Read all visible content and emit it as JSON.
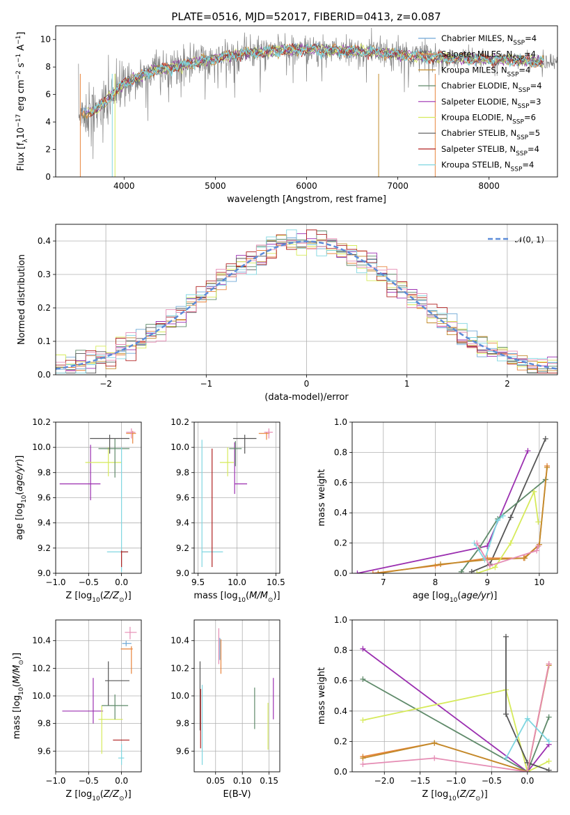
{
  "title": "PLATE=0516, MJD=52017, FIBERID=0413, z=0.087",
  "colors": {
    "Chabrier MILES": "#6fa8d6",
    "Salpeter MILES": "#e8843c",
    "Kroupa MILES": "#c28a2a",
    "Chabrier ELODIE": "#5f8a6a",
    "Salpeter ELODIE": "#9b2fb0",
    "Kroupa ELODIE": "#d6ea5a",
    "Chabrier STELIB": "#555555",
    "Salpeter STELIB": "#b02020",
    "Kroupa STELIB": "#7fd6e0",
    "Pink": "#e58cb4",
    "Data": "#808080",
    "Normal": "#5b8bd8"
  },
  "chart_data": [
    {
      "id": "spectrum",
      "type": "line",
      "title": "PLATE=0516, MJD=52017, FIBERID=0413, z=0.087",
      "xlabel": "wavelength [Angstrom, rest frame]",
      "ylabel": "Flux [f_λ10^-17 erg cm^-2 s^-1 A^-1]",
      "xlim": [
        3250,
        8750
      ],
      "ylim": [
        0,
        11
      ],
      "xticks": [
        4000,
        5000,
        6000,
        7000,
        8000
      ],
      "yticks": [
        0,
        2,
        4,
        6,
        8,
        10
      ],
      "legend_position": "top-right",
      "legend": [
        {
          "label": "Chabrier MILES, N_SSP=4"
        },
        {
          "label": "Salpeter MILES, N_SSP=4"
        },
        {
          "label": "Kroupa MILES, N_SSP=4"
        },
        {
          "label": "Chabrier ELODIE, N_SSP=4"
        },
        {
          "label": "Salpeter ELODIE, N_SSP=3"
        },
        {
          "label": "Kroupa ELODIE, N_SSP=6"
        },
        {
          "label": "Chabrier STELIB, N_SSP=5"
        },
        {
          "label": "Salpeter STELIB, N_SSP=4"
        },
        {
          "label": "Kroupa STELIB, N_SSP=4"
        }
      ],
      "model_trend": {
        "x": [
          3500,
          3700,
          4000,
          4300,
          4700,
          5000,
          5300,
          5700,
          6000,
          6300,
          6700,
          7000,
          7400,
          7800,
          8300,
          8700
        ],
        "y": [
          4.5,
          4.9,
          6.8,
          7.7,
          8.2,
          8.6,
          9.0,
          9.2,
          9.3,
          9.2,
          9.1,
          8.9,
          8.7,
          8.6,
          8.5,
          8.3
        ]
      },
      "data_noise": 1.0,
      "data_start": 3500
    },
    {
      "id": "residuals",
      "type": "histogram",
      "xlabel": "(data-model)/error",
      "ylabel": "Normed distribution",
      "xlim": [
        -2.5,
        2.5
      ],
      "ylim": [
        0,
        0.45
      ],
      "xticks": [
        -2,
        -1,
        0,
        1,
        2
      ],
      "yticks": [
        0.0,
        0.1,
        0.2,
        0.3,
        0.4
      ],
      "bin_width": 0.1,
      "curve_label": "N(0,1)",
      "legend_position": "top-right"
    },
    {
      "id": "age_vs_Z",
      "type": "errorbar",
      "xlabel": "Z [log10(Z/Z⊙)]",
      "ylabel": "age [log10(age/yr)]",
      "xlim": [
        -1.0,
        0.3
      ],
      "ylim": [
        9.0,
        10.2
      ],
      "xticks": [
        -1.0,
        -0.5,
        0.0
      ],
      "yticks": [
        9.0,
        9.2,
        9.4,
        9.6,
        9.8,
        10.0,
        10.2
      ],
      "points": [
        {
          "series": "Salpeter ELODIE",
          "x": -0.47,
          "xerr": [
            0.47,
            0.15
          ],
          "y": 9.71,
          "yerr": [
            0.13,
            0.31
          ]
        },
        {
          "series": "Kroupa ELODIE",
          "x": -0.2,
          "xerr": [
            0.35,
            0.2
          ],
          "y": 9.88,
          "yerr": [
            0.11,
            0.12
          ]
        },
        {
          "series": "Chabrier ELODIE",
          "x": -0.1,
          "xerr": [
            0.25,
            0.22
          ],
          "y": 9.99,
          "yerr": [
            0.23,
            0.08
          ]
        },
        {
          "series": "Chabrier STELIB",
          "x": -0.18,
          "xerr": [
            0.3,
            0.3
          ],
          "y": 10.07,
          "yerr": [
            0.12,
            0.03
          ]
        },
        {
          "series": "Salpeter MILES",
          "x": 0.17,
          "xerr": [
            0.1,
            0.05
          ],
          "y": 10.11,
          "yerr": [
            0.08,
            0.02
          ]
        },
        {
          "series": "Pink",
          "x": 0.15,
          "xerr": [
            0.08,
            0.06
          ],
          "y": 10.12,
          "yerr": [
            0.05,
            0.03
          ]
        },
        {
          "series": "Kroupa STELIB",
          "x": 0.0,
          "xerr": [
            0.22,
            0.1
          ],
          "y": 9.17,
          "yerr": [
            0.16,
            0.83
          ]
        },
        {
          "series": "Salpeter STELIB",
          "x": 0.0,
          "xerr": [
            0.01,
            0.1
          ],
          "y": 9.17,
          "yerr": [
            0.12,
            0.01
          ]
        }
      ]
    },
    {
      "id": "age_vs_mass",
      "type": "errorbar",
      "xlabel": "mass [log10(M/M⊙)]",
      "xlim": [
        9.45,
        10.55
      ],
      "ylim": [
        9.0,
        10.2
      ],
      "xticks": [
        9.5,
        10.0,
        10.5
      ],
      "yticks": [
        9.0,
        9.2,
        9.4,
        9.6,
        9.8,
        10.0,
        10.2
      ],
      "points": [
        {
          "series": "Salpeter ELODIE",
          "x": 9.97,
          "xerr": [
            0.0,
            0.16
          ],
          "y": 9.71,
          "yerr": [
            0.08,
            0.33
          ]
        },
        {
          "series": "Kroupa ELODIE",
          "x": 9.88,
          "xerr": [
            0.1,
            0.08
          ],
          "y": 9.88,
          "yerr": [
            0.11,
            0.12
          ]
        },
        {
          "series": "Chabrier ELODIE",
          "x": 9.98,
          "xerr": [
            0.08,
            0.08
          ],
          "y": 9.99,
          "yerr": [
            0.14,
            0.06
          ]
        },
        {
          "series": "Chabrier STELIB",
          "x": 10.1,
          "xerr": [
            0.15,
            0.15
          ],
          "y": 10.07,
          "yerr": [
            0.12,
            0.03
          ]
        },
        {
          "series": "Salpeter MILES",
          "x": 10.38,
          "xerr": [
            0.1,
            0.04
          ],
          "y": 10.11,
          "yerr": [
            0.05,
            0.01
          ]
        },
        {
          "series": "Pink",
          "x": 10.41,
          "xerr": [
            0.06,
            0.05
          ],
          "y": 10.12,
          "yerr": [
            0.05,
            0.03
          ]
        },
        {
          "series": "Kroupa STELIB",
          "x": 9.55,
          "xerr": [
            0.0,
            0.27
          ],
          "y": 9.17,
          "yerr": [
            0.12,
            0.89
          ]
        },
        {
          "series": "Salpeter STELIB",
          "x": 9.68,
          "xerr": [
            0.0,
            0.0
          ],
          "y": 9.17,
          "yerr": [
            0.12,
            0.82
          ]
        }
      ]
    },
    {
      "id": "weight_vs_age",
      "type": "line",
      "xlabel": "age [log10(age/yr)]",
      "ylabel": "mass weight",
      "xlim": [
        6.4,
        10.35
      ],
      "ylim": [
        0,
        1.0
      ],
      "xticks": [
        7,
        8,
        9,
        10
      ],
      "yticks": [
        0.0,
        0.2,
        0.4,
        0.6,
        0.8,
        1.0
      ],
      "series": [
        {
          "name": "Salpeter ELODIE",
          "x": [
            6.5,
            9.0,
            9.78
          ],
          "y": [
            0.0,
            0.18,
            0.81
          ]
        },
        {
          "name": "Chabrier STELIB",
          "x": [
            8.7,
            9.05,
            9.45,
            10.12
          ],
          "y": [
            0.01,
            0.06,
            0.37,
            0.89
          ]
        },
        {
          "name": "Chabrier ELODIE",
          "x": [
            8.5,
            8.85,
            9.2,
            10.12
          ],
          "y": [
            0.01,
            0.17,
            0.36,
            0.62
          ]
        },
        {
          "name": "Salpeter MILES",
          "x": [
            6.8,
            8.0,
            9.0,
            9.7,
            10.0,
            10.15
          ],
          "y": [
            0.0,
            0.05,
            0.1,
            0.1,
            0.19,
            0.71
          ]
        },
        {
          "name": "Kroupa MILES",
          "x": [
            6.9,
            8.1,
            9.0,
            9.72,
            10.0,
            10.15
          ],
          "y": [
            0.0,
            0.06,
            0.09,
            0.1,
            0.19,
            0.7
          ]
        },
        {
          "name": "Kroupa ELODIE",
          "x": [
            8.8,
            9.15,
            9.45,
            9.9,
            9.98
          ],
          "y": [
            0.0,
            0.04,
            0.2,
            0.54,
            0.34
          ]
        },
        {
          "name": "Kroupa STELIB",
          "x": [
            8.75,
            8.95,
            9.2,
            9.3
          ],
          "y": [
            0.2,
            0.09,
            0.35,
            0.38
          ]
        },
        {
          "name": "Pink",
          "x": [
            8.8,
            9.05,
            9.95,
            9.98
          ],
          "y": [
            0.2,
            0.05,
            0.15,
            0.18
          ]
        }
      ]
    },
    {
      "id": "mass_vs_Z",
      "type": "errorbar",
      "xlabel": "Z [log10(Z/Z⊙)]",
      "ylabel": "mass [log10(M/M⊙)]",
      "xlim": [
        -1.0,
        0.3
      ],
      "ylim": [
        9.45,
        10.55
      ],
      "xticks": [
        -1.0,
        -0.5,
        0.0
      ],
      "yticks": [
        9.6,
        9.8,
        10.0,
        10.2,
        10.4
      ],
      "points": [
        {
          "series": "Salpeter ELODIE",
          "x": -0.43,
          "xerr": [
            0.47,
            0.15
          ],
          "y": 9.89,
          "yerr": [
            0.09,
            0.24
          ]
        },
        {
          "series": "Kroupa ELODIE",
          "x": -0.3,
          "xerr": [
            0.05,
            0.32
          ],
          "y": 9.83,
          "yerr": [
            0.25,
            0.1
          ]
        },
        {
          "series": "Chabrier ELODIE",
          "x": -0.1,
          "xerr": [
            0.2,
            0.2
          ],
          "y": 9.93,
          "yerr": [
            0.1,
            0.08
          ]
        },
        {
          "series": "Chabrier STELIB",
          "x": -0.2,
          "xerr": [
            0.05,
            0.32
          ],
          "y": 10.11,
          "yerr": [
            0.18,
            0.14
          ]
        },
        {
          "series": "Salpeter STELIB",
          "x": -0.03,
          "xerr": [
            0.1,
            0.15
          ],
          "y": 9.68,
          "yerr": [
            0.0,
            0.0
          ]
        },
        {
          "series": "Kroupa STELIB",
          "x": 0.0,
          "xerr": [
            0.05,
            0.04
          ],
          "y": 9.55,
          "yerr": [
            0.05,
            0.1
          ]
        },
        {
          "series": "Salpeter MILES",
          "x": 0.15,
          "xerr": [
            0.16,
            0.02
          ],
          "y": 10.34,
          "yerr": [
            0.18,
            0.02
          ]
        },
        {
          "series": "Pink",
          "x": 0.13,
          "xerr": [
            0.08,
            0.1
          ],
          "y": 10.46,
          "yerr": [
            0.05,
            0.04
          ]
        },
        {
          "series": "Chabrier MILES",
          "x": 0.07,
          "xerr": [
            0.06,
            0.08
          ],
          "y": 10.38,
          "yerr": [
            0.02,
            0.02
          ]
        }
      ]
    },
    {
      "id": "mass_vs_ebv",
      "type": "errorbar",
      "xlabel": "E(B-V)",
      "xlim": [
        0.01,
        0.17
      ],
      "ylim": [
        9.45,
        10.55
      ],
      "xticks": [
        0.05,
        0.1,
        0.15
      ],
      "yticks": [
        9.6,
        9.8,
        10.0,
        10.2,
        10.4
      ],
      "points": [
        {
          "series": "Chabrier STELIB",
          "x": 0.021,
          "y": 10.0,
          "yerr": [
            0.25,
            0.25
          ]
        },
        {
          "series": "Salpeter STELIB",
          "x": 0.022,
          "y": 9.85,
          "yerr": [
            0.23,
            0.2
          ]
        },
        {
          "series": "Kroupa STELIB",
          "x": 0.025,
          "y": 9.8,
          "yerr": [
            0.3,
            0.28
          ]
        },
        {
          "series": "Pink",
          "x": 0.056,
          "y": 10.36,
          "yerr": [
            0.13,
            0.13
          ]
        },
        {
          "series": "Chabrier MILES",
          "x": 0.058,
          "y": 10.34,
          "yerr": [
            0.08,
            0.08
          ]
        },
        {
          "series": "Salpeter MILES",
          "x": 0.06,
          "y": 10.31,
          "yerr": [
            0.15,
            0.1
          ]
        },
        {
          "series": "Chabrier ELODIE",
          "x": 0.123,
          "y": 9.91,
          "yerr": [
            0.15,
            0.15
          ]
        },
        {
          "series": "Kroupa ELODIE",
          "x": 0.148,
          "y": 9.78,
          "yerr": [
            0.17,
            0.17
          ]
        },
        {
          "series": "Salpeter ELODIE",
          "x": 0.158,
          "y": 9.98,
          "yerr": [
            0.15,
            0.15
          ]
        }
      ]
    },
    {
      "id": "weight_vs_Z",
      "type": "line",
      "xlabel": "Z [log10(Z/Z⊙)]",
      "ylabel": "mass weight",
      "xlim": [
        -2.45,
        0.42
      ],
      "ylim": [
        0,
        1.0
      ],
      "xticks": [
        -2.0,
        -1.5,
        -1.0,
        -0.5,
        0.0
      ],
      "yticks": [
        0.0,
        0.2,
        0.4,
        0.6,
        0.8,
        1.0
      ],
      "series": [
        {
          "name": "Salpeter ELODIE",
          "x": [
            -2.3,
            0.0,
            0.3
          ],
          "y": [
            0.81,
            0.0,
            0.18
          ]
        },
        {
          "name": "Chabrier ELODIE",
          "x": [
            -2.3,
            0.0,
            0.3
          ],
          "y": [
            0.61,
            0.0,
            0.36
          ]
        },
        {
          "name": "Kroupa ELODIE",
          "x": [
            -2.3,
            -0.3,
            0.0,
            0.3
          ],
          "y": [
            0.34,
            0.54,
            0.0,
            0.07
          ]
        },
        {
          "name": "Chabrier STELIB",
          "x": [
            -0.3,
            -0.3,
            0.0,
            0.3
          ],
          "y": [
            0.89,
            0.38,
            0.06,
            0.01
          ]
        },
        {
          "name": "Salpeter MILES",
          "x": [
            -2.3,
            -1.3,
            0.0,
            0.3
          ],
          "y": [
            0.1,
            0.19,
            0.0,
            0.71
          ]
        },
        {
          "name": "Kroupa MILES",
          "x": [
            -2.3,
            -1.3,
            0.0,
            0.3
          ],
          "y": [
            0.09,
            0.19,
            0.0,
            0.7
          ]
        },
        {
          "name": "Pink",
          "x": [
            -2.3,
            -1.3,
            0.0,
            0.3
          ],
          "y": [
            0.05,
            0.09,
            0.0,
            0.71
          ]
        },
        {
          "name": "Kroupa STELIB",
          "x": [
            -0.3,
            0.0,
            0.3
          ],
          "y": [
            0.09,
            0.35,
            0.2
          ]
        }
      ]
    }
  ]
}
